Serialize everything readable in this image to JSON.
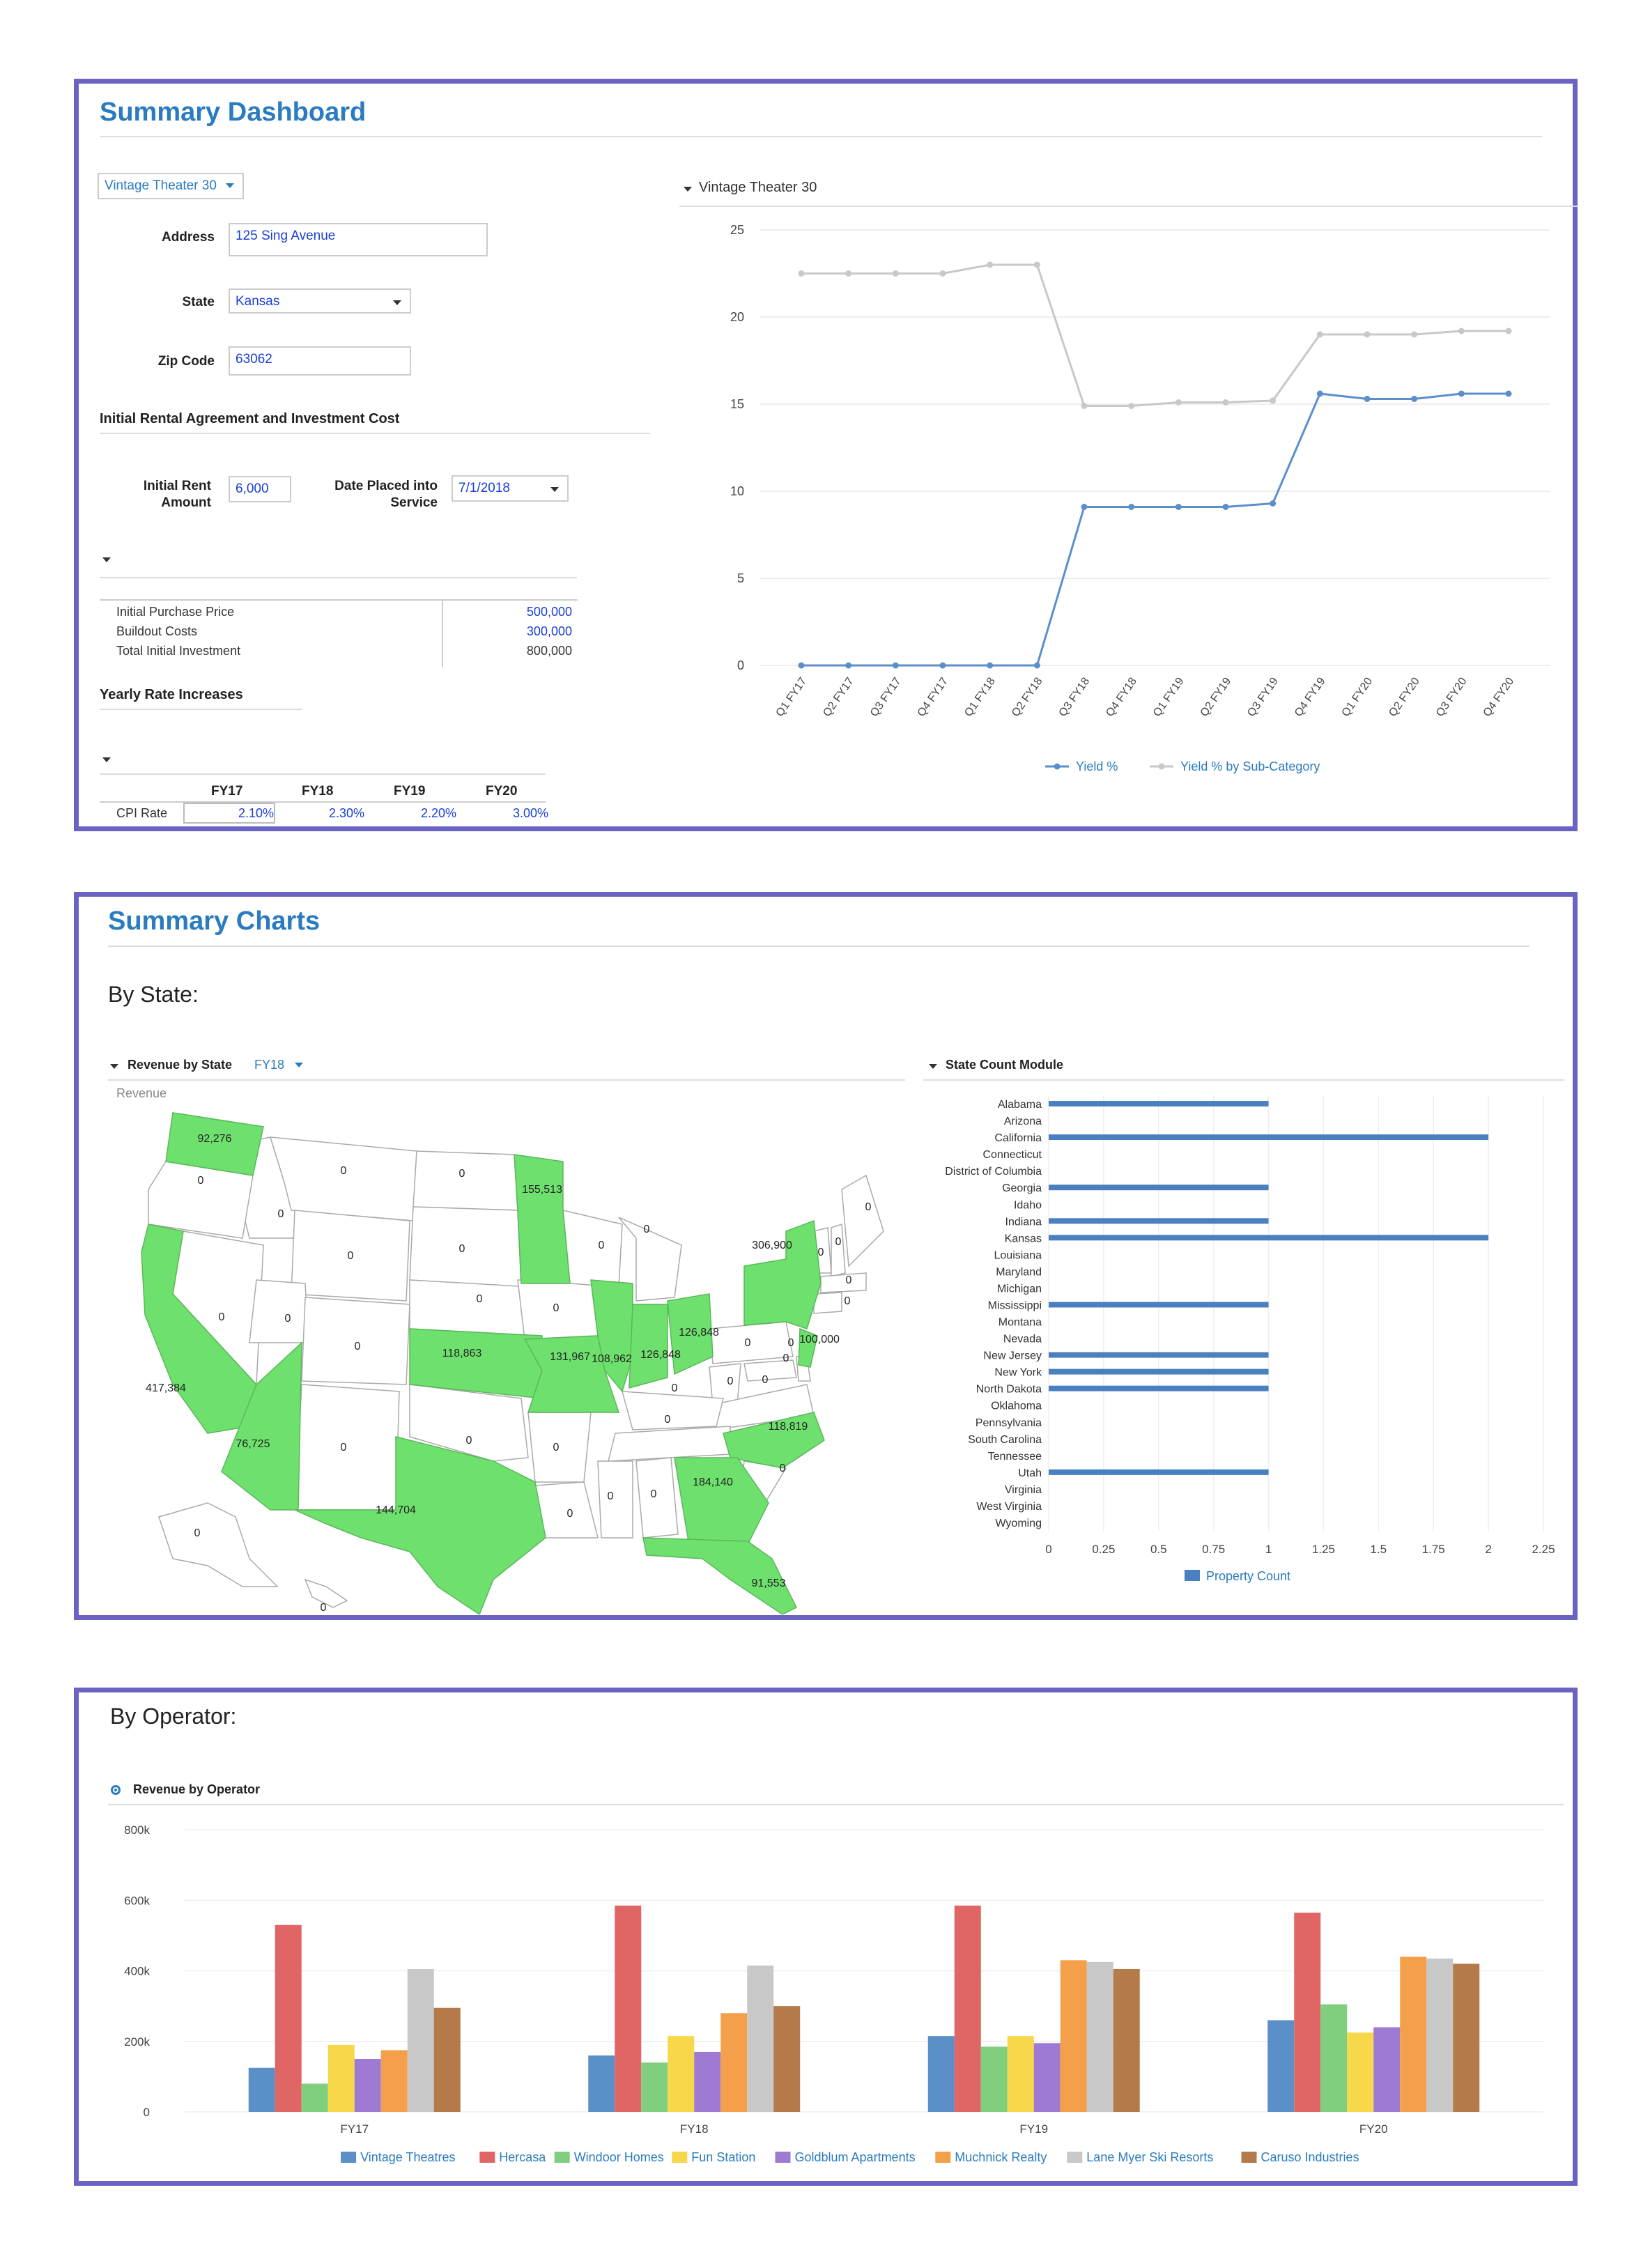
{
  "dashboard": {
    "title": "Summary Dashboard",
    "property_select": "Vintage Theater 30",
    "address_label": "Address",
    "address_value": "125 Sing Avenue",
    "state_label": "State",
    "state_value": "Kansas",
    "zip_label": "Zip Code",
    "zip_value": "63062",
    "rental_section": "Initial Rental Agreement and Investment Cost",
    "initial_rent_label_1": "Initial Rent",
    "initial_rent_label_2": "Amount",
    "initial_rent_value": "6,000",
    "date_label_1": "Date Placed into",
    "date_label_2": "Service",
    "date_value": "7/1/2018",
    "investment_rows": [
      {
        "label": "Initial Purchase Price",
        "value": "500,000"
      },
      {
        "label": "Buildout Costs",
        "value": "300,000"
      },
      {
        "label": "Total Initial Investment",
        "value": "800,000"
      }
    ],
    "yearly_section": "Yearly Rate Increases",
    "rate_headers": [
      "FY17",
      "FY18",
      "FY19",
      "FY20"
    ],
    "cpi_label": "CPI Rate",
    "cpi_values": [
      "2.10%",
      "2.30%",
      "2.20%",
      "3.00%"
    ],
    "line_chart_title": "Vintage Theater 30"
  },
  "summary_charts": {
    "title": "Summary Charts",
    "by_state": "By State:",
    "revenue_by_state_title": "Revenue by State",
    "revenue_by_state_select": "FY18",
    "revenue_label": "Revenue",
    "map_labels": [
      {
        "state": "WA",
        "value": "92,276"
      },
      {
        "state": "OR",
        "value": "0"
      },
      {
        "state": "ID",
        "value": "0"
      },
      {
        "state": "MT",
        "value": "0"
      },
      {
        "state": "ND",
        "value": "0"
      },
      {
        "state": "MN",
        "value": "155,513"
      },
      {
        "state": "WI",
        "value": "0"
      },
      {
        "state": "MI",
        "value": "0"
      },
      {
        "state": "NY",
        "value": "306,900"
      },
      {
        "state": "VT",
        "value": "0"
      },
      {
        "state": "NH",
        "value": "0"
      },
      {
        "state": "ME",
        "value": "0"
      },
      {
        "state": "MA",
        "value": "0"
      },
      {
        "state": "CT",
        "value": "0"
      },
      {
        "state": "NJ",
        "value": "100,000"
      },
      {
        "state": "WY",
        "value": "0"
      },
      {
        "state": "SD",
        "value": "0"
      },
      {
        "state": "IA",
        "value": "0"
      },
      {
        "state": "NE",
        "value": "0"
      },
      {
        "state": "NV",
        "value": "0"
      },
      {
        "state": "UT",
        "value": "0"
      },
      {
        "state": "CO",
        "value": "0"
      },
      {
        "state": "CA",
        "value": "417,384"
      },
      {
        "state": "KS",
        "value": "118,863"
      },
      {
        "state": "MO",
        "value": "131,967"
      },
      {
        "state": "IL",
        "value": "108,962"
      },
      {
        "state": "IN",
        "value": "126,848"
      },
      {
        "state": "OH",
        "value": "126,848"
      },
      {
        "state": "PA",
        "value": "0"
      },
      {
        "state": "DE",
        "value": "0"
      },
      {
        "state": "MD",
        "value": "0"
      },
      {
        "state": "WV",
        "value": "0"
      },
      {
        "state": "VA",
        "value": "0"
      },
      {
        "state": "KY",
        "value": "0"
      },
      {
        "state": "AZ",
        "value": "76,725"
      },
      {
        "state": "NM",
        "value": "0"
      },
      {
        "state": "OK",
        "value": "0"
      },
      {
        "state": "AR",
        "value": "0"
      },
      {
        "state": "TN",
        "value": "0"
      },
      {
        "state": "NC",
        "value": "118,819"
      },
      {
        "state": "SC",
        "value": "0"
      },
      {
        "state": "TX",
        "value": "144,704"
      },
      {
        "state": "LA",
        "value": "0"
      },
      {
        "state": "MS",
        "value": "0"
      },
      {
        "state": "AL",
        "value": "0"
      },
      {
        "state": "GA",
        "value": "184,140"
      },
      {
        "state": "FL",
        "value": "91,553"
      },
      {
        "state": "AK",
        "value": "0"
      },
      {
        "state": "HI",
        "value": "0"
      }
    ],
    "state_count_title": "State Count Module",
    "by_operator": "By Operator:",
    "revenue_by_operator_title": "Revenue by Operator"
  },
  "colors": {
    "accent": "#2a7bbf",
    "panel_border": "#6a63c4",
    "map_fill": "#6ee06e",
    "bar_blue": "#4a80bf",
    "line_blue": "#5b8fcc",
    "line_gray": "#c8c8c8"
  },
  "chart_data": [
    {
      "type": "line",
      "title": "Vintage Theater 30",
      "categories": [
        "Q1 FY17",
        "Q2 FY17",
        "Q3 FY17",
        "Q4 FY17",
        "Q1 FY18",
        "Q2 FY18",
        "Q3 FY18",
        "Q4 FY18",
        "Q1 FY19",
        "Q2 FY19",
        "Q3 FY19",
        "Q4 FY19",
        "Q1 FY20",
        "Q2 FY20",
        "Q3 FY20",
        "Q4 FY20"
      ],
      "series": [
        {
          "name": "Yield %",
          "color": "#5b8fcc",
          "values": [
            0,
            0,
            0,
            0,
            0,
            0,
            9.1,
            9.1,
            9.1,
            9.1,
            9.3,
            15.6,
            15.3,
            15.3,
            15.6,
            15.6
          ]
        },
        {
          "name": "Yield % by Sub-Category",
          "color": "#c8c8c8",
          "values": [
            22.5,
            22.5,
            22.5,
            22.5,
            23,
            23,
            14.9,
            14.9,
            15.1,
            15.1,
            15.2,
            19,
            19,
            19,
            19.2,
            19.2
          ]
        }
      ],
      "ylim": [
        0,
        25
      ],
      "yticks": [
        "0",
        "5",
        "10",
        "15",
        "20",
        "25"
      ],
      "legend": "bottom",
      "grid": true
    },
    {
      "type": "bar",
      "orientation": "horizontal",
      "title": "State Count Module",
      "categories": [
        "Alabama",
        "Arizona",
        "California",
        "Connecticut",
        "District of Columbia",
        "Georgia",
        "Idaho",
        "Indiana",
        "Kansas",
        "Louisiana",
        "Maryland",
        "Michigan",
        "Mississippi",
        "Montana",
        "Nevada",
        "New Jersey",
        "New York",
        "North Dakota",
        "Oklahoma",
        "Pennsylvania",
        "South Carolina",
        "Tennessee",
        "Utah",
        "Virginia",
        "West Virginia",
        "Wyoming"
      ],
      "series": [
        {
          "name": "Property Count",
          "color": "#4a80bf",
          "values": [
            1,
            0,
            2,
            0,
            0,
            1,
            0,
            1,
            2,
            0,
            0,
            0,
            1,
            0,
            0,
            1,
            1,
            1,
            0,
            0,
            0,
            0,
            1,
            0,
            0,
            0
          ]
        }
      ],
      "xlim": [
        0,
        2.25
      ],
      "xticks": [
        "0",
        "0.25",
        "0.5",
        "0.75",
        "1",
        "1.25",
        "1.5",
        "1.75",
        "2",
        "2.25"
      ],
      "legend": "bottom",
      "grid": true
    },
    {
      "type": "bar",
      "title": "Revenue by Operator",
      "categories": [
        "FY17",
        "FY18",
        "FY19",
        "FY20"
      ],
      "series": [
        {
          "name": "Vintage Theatres",
          "color": "#5b8fc7",
          "values": [
            125000,
            160000,
            215000,
            260000
          ]
        },
        {
          "name": "Hercasa",
          "color": "#e06666",
          "values": [
            530000,
            585000,
            585000,
            565000
          ]
        },
        {
          "name": "Windoor Homes",
          "color": "#7fcf7f",
          "values": [
            80000,
            140000,
            185000,
            305000
          ]
        },
        {
          "name": "Fun Station",
          "color": "#f7d84a",
          "values": [
            190000,
            215000,
            215000,
            225000
          ]
        },
        {
          "name": "Goldblum Apartments",
          "color": "#9f7ad3",
          "values": [
            150000,
            170000,
            195000,
            240000
          ]
        },
        {
          "name": "Muchnick Realty",
          "color": "#f4a04a",
          "values": [
            175000,
            280000,
            430000,
            440000
          ]
        },
        {
          "name": "Lane Myer Ski Resorts",
          "color": "#c8c8c8",
          "values": [
            405000,
            415000,
            425000,
            435000
          ]
        },
        {
          "name": "Caruso Industries",
          "color": "#b57a4a",
          "values": [
            295000,
            300000,
            405000,
            420000
          ]
        }
      ],
      "ylim": [
        0,
        800000
      ],
      "yticks": [
        "0",
        "200k",
        "400k",
        "600k",
        "800k"
      ],
      "legend": "bottom",
      "grid": true
    }
  ]
}
